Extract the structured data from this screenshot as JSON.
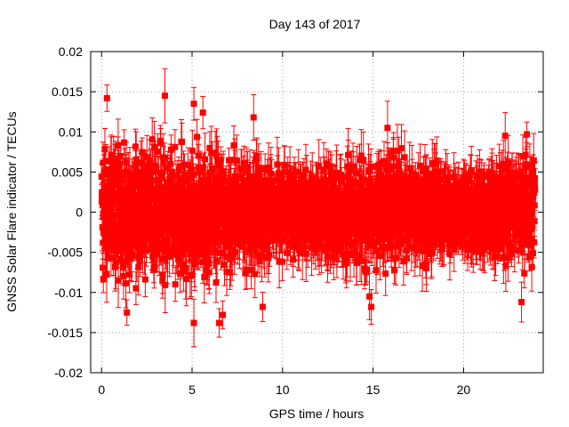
{
  "chart_data": {
    "type": "scatter",
    "title": "Day 143 of 2017",
    "xlabel": "GPS time / hours",
    "ylabel": "GNSS Solar Flare indicator / TECUs",
    "xlim": [
      -0.6,
      24.4
    ],
    "ylim": [
      -0.02,
      0.02
    ],
    "grid": true,
    "x_ticks": [
      0,
      5,
      10,
      15,
      20
    ],
    "x_tick_labels": [
      "0",
      "5",
      "10",
      "15",
      "20"
    ],
    "y_ticks": [
      -0.02,
      -0.015,
      -0.01,
      -0.005,
      0,
      0.005,
      0.01,
      0.015,
      0.02
    ],
    "y_tick_labels": [
      "-0.02",
      "-0.015",
      "-0.01",
      "-0.005",
      "0",
      "0.005",
      "0.01",
      "0.015",
      "0.02"
    ],
    "series_color": "#ff0000",
    "error_bar_typical": 0.0025,
    "series": [
      {
        "name": "solar flare indicator",
        "sampling_interval_hours": 0.008333,
        "x_range_hours": [
          0,
          23.95
        ],
        "amplitude_envelope": {
          "x": [
            0,
            1,
            2,
            3,
            4,
            5,
            6,
            7,
            8,
            9,
            10,
            11,
            12,
            13,
            14,
            15,
            16,
            17,
            18,
            19,
            20,
            21,
            22,
            23,
            23.95
          ],
          "y_max": [
            0.0085,
            0.0095,
            0.0095,
            0.0095,
            0.0098,
            0.0098,
            0.0095,
            0.0088,
            0.0085,
            0.0078,
            0.0065,
            0.0058,
            0.0058,
            0.0068,
            0.0075,
            0.008,
            0.0082,
            0.0078,
            0.0072,
            0.0062,
            0.0056,
            0.0058,
            0.0068,
            0.0076,
            0.0078
          ]
        },
        "outliers": [
          {
            "x": 0.3,
            "y": 0.0142
          },
          {
            "x": 3.5,
            "y": 0.0145
          },
          {
            "x": 5.1,
            "y": 0.0135
          },
          {
            "x": 5.6,
            "y": 0.0124
          },
          {
            "x": 8.4,
            "y": 0.0118
          },
          {
            "x": 6.7,
            "y": -0.0128
          },
          {
            "x": 5.1,
            "y": -0.0138
          },
          {
            "x": 1.4,
            "y": -0.0125
          },
          {
            "x": 6.5,
            "y": -0.0138
          },
          {
            "x": 8.9,
            "y": -0.0118
          },
          {
            "x": 14.9,
            "y": -0.0118
          },
          {
            "x": 14.8,
            "y": -0.0105
          },
          {
            "x": 23.2,
            "y": -0.0112
          },
          {
            "x": 23.5,
            "y": 0.0097
          },
          {
            "x": 22.3,
            "y": 0.0095
          },
          {
            "x": 15.8,
            "y": 0.0105
          },
          {
            "x": 0.1,
            "y": -0.0083
          }
        ]
      }
    ]
  }
}
